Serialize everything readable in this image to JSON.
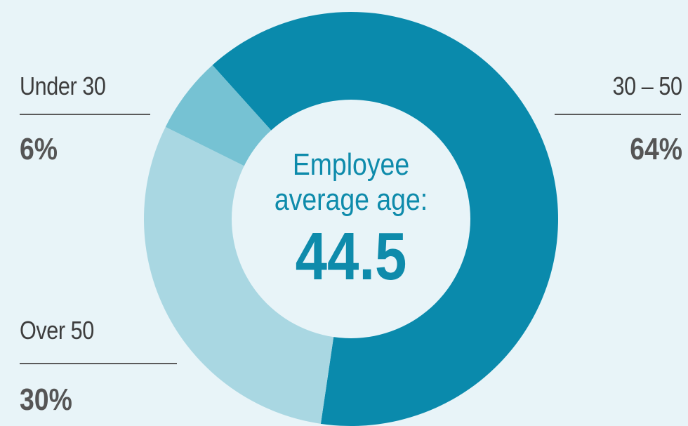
{
  "chart_data": {
    "type": "pie",
    "categories": [
      "30 – 50",
      "Over 50",
      "Under 30"
    ],
    "values": [
      64,
      30,
      6
    ],
    "colors": [
      "#0a8aac",
      "#a9d7e2",
      "#76c2d3"
    ],
    "center_title_line1": "Employee",
    "center_title_line2": "average age:",
    "center_value": "44.5"
  },
  "labels": {
    "under30": {
      "name": "Under 30",
      "pct": "6%"
    },
    "mid": {
      "name": "30 – 50",
      "pct": "64%"
    },
    "over50": {
      "name": "Over 50",
      "pct": "30%"
    }
  },
  "background_color": "#e8f4f8"
}
